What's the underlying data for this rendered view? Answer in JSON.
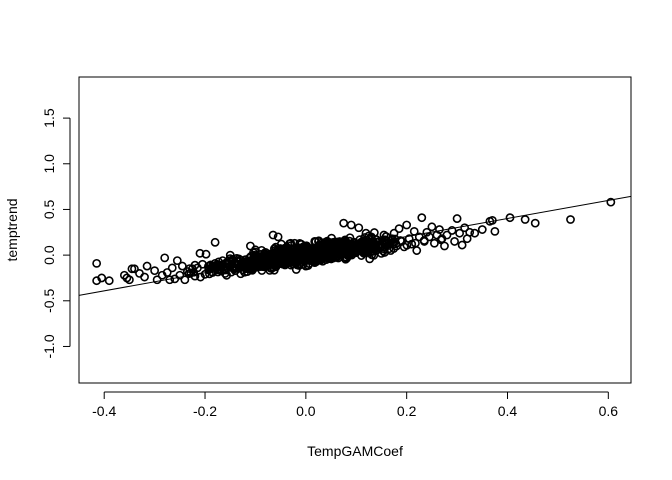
{
  "chart_data": {
    "type": "scatter",
    "title": "",
    "xlabel": "TempGAMCoef",
    "ylabel": "temptrend",
    "xlim": [
      -0.45,
      0.645
    ],
    "ylim": [
      -1.4,
      1.95
    ],
    "x_ticks": [
      -0.4,
      -0.2,
      0.0,
      0.2,
      0.4,
      0.6
    ],
    "x_tick_labels": [
      "-0.4",
      "-0.2",
      "0.0",
      "0.2",
      "0.4",
      "0.6"
    ],
    "y_ticks": [
      -1.0,
      -0.5,
      0.0,
      0.5,
      1.0,
      1.5
    ],
    "y_tick_labels": [
      "-1.0",
      "-0.5",
      "0.0",
      "0.5",
      "1.0",
      "1.5"
    ],
    "grid": false,
    "legend": "none",
    "fit_line": {
      "intercept": 0.005,
      "slope": 0.99
    },
    "marker": "open-circle",
    "color": "#000000",
    "points": [
      [
        -0.415,
        -0.09
      ],
      [
        -0.415,
        -0.28
      ],
      [
        -0.405,
        -0.25
      ],
      [
        -0.39,
        -0.28
      ],
      [
        -0.36,
        -0.22
      ],
      [
        -0.355,
        -0.25
      ],
      [
        -0.35,
        -0.27
      ],
      [
        -0.345,
        -0.15
      ],
      [
        -0.34,
        -0.15
      ],
      [
        -0.33,
        -0.2
      ],
      [
        -0.32,
        -0.24
      ],
      [
        -0.315,
        -0.12
      ],
      [
        -0.3,
        -0.17
      ],
      [
        -0.295,
        -0.27
      ],
      [
        -0.285,
        -0.22
      ],
      [
        -0.28,
        -0.03
      ],
      [
        -0.275,
        -0.19
      ],
      [
        -0.27,
        -0.27
      ],
      [
        -0.265,
        -0.14
      ],
      [
        -0.26,
        -0.26
      ],
      [
        -0.255,
        -0.06
      ],
      [
        -0.25,
        -0.22
      ],
      [
        -0.245,
        -0.12
      ],
      [
        -0.24,
        -0.27
      ],
      [
        -0.235,
        -0.18
      ],
      [
        -0.225,
        -0.15
      ],
      [
        -0.22,
        -0.23
      ],
      [
        -0.215,
        -0.14
      ],
      [
        -0.21,
        0.02
      ],
      [
        -0.205,
        -0.1
      ],
      [
        -0.2,
        -0.21
      ],
      [
        -0.198,
        0.01
      ],
      [
        -0.192,
        -0.15
      ],
      [
        -0.185,
        -0.19
      ],
      [
        -0.18,
        -0.09
      ],
      [
        -0.18,
        0.14
      ],
      [
        -0.175,
        -0.16
      ],
      [
        -0.17,
        -0.12
      ],
      [
        -0.165,
        -0.06
      ],
      [
        -0.16,
        -0.2
      ],
      [
        -0.155,
        -0.1
      ],
      [
        -0.15,
        0.0
      ],
      [
        -0.145,
        -0.13
      ],
      [
        -0.14,
        -0.17
      ],
      [
        -0.135,
        -0.07
      ],
      [
        -0.13,
        -0.12
      ],
      [
        -0.125,
        -0.16
      ],
      [
        -0.12,
        -0.05
      ],
      [
        -0.115,
        -0.1
      ],
      [
        -0.11,
        0.1
      ],
      [
        -0.105,
        -0.14
      ],
      [
        -0.1,
        -0.08
      ],
      [
        -0.095,
        -0.03
      ],
      [
        -0.09,
        -0.12
      ],
      [
        -0.085,
        -0.07
      ],
      [
        -0.08,
        0.03
      ],
      [
        -0.075,
        -0.11
      ],
      [
        -0.07,
        -0.04
      ],
      [
        -0.065,
        0.22
      ],
      [
        -0.06,
        -0.08
      ],
      [
        -0.055,
        0.2
      ],
      [
        -0.05,
        -0.02
      ],
      [
        -0.045,
        -0.1
      ],
      [
        -0.04,
        0.03
      ],
      [
        -0.035,
        -0.06
      ],
      [
        -0.03,
        0.13
      ],
      [
        -0.025,
        -0.03
      ],
      [
        -0.02,
        -0.09
      ],
      [
        -0.015,
        0.02
      ],
      [
        -0.01,
        -0.05
      ],
      [
        -0.005,
        0.05
      ],
      [
        0.0,
        -0.12
      ],
      [
        0.005,
        0.0
      ],
      [
        0.01,
        -0.04
      ],
      [
        0.015,
        0.07
      ],
      [
        0.02,
        -0.02
      ],
      [
        0.025,
        0.15
      ],
      [
        0.03,
        0.03
      ],
      [
        0.035,
        -0.03
      ],
      [
        0.04,
        0.06
      ],
      [
        0.045,
        0.01
      ],
      [
        0.05,
        0.1
      ],
      [
        0.055,
        -0.01
      ],
      [
        0.06,
        0.05
      ],
      [
        0.065,
        0.12
      ],
      [
        0.07,
        0.02
      ],
      [
        0.075,
        0.35
      ],
      [
        0.08,
        0.07
      ],
      [
        0.085,
        0.03
      ],
      [
        0.09,
        0.33
      ],
      [
        0.095,
        0.1
      ],
      [
        0.1,
        0.05
      ],
      [
        0.105,
        0.3
      ],
      [
        0.11,
        0.09
      ],
      [
        0.115,
        0.02
      ],
      [
        0.12,
        0.13
      ],
      [
        0.125,
        0.07
      ],
      [
        0.13,
        0.2
      ],
      [
        0.135,
        0.11
      ],
      [
        0.14,
        0.05
      ],
      [
        0.145,
        0.15
      ],
      [
        0.15,
        0.09
      ],
      [
        0.155,
        0.22
      ],
      [
        0.16,
        0.13
      ],
      [
        0.165,
        0.07
      ],
      [
        0.17,
        0.17
      ],
      [
        0.175,
        0.24
      ],
      [
        0.18,
        0.1
      ],
      [
        0.185,
        0.29
      ],
      [
        0.19,
        0.15
      ],
      [
        0.195,
        0.09
      ],
      [
        0.2,
        0.33
      ],
      [
        0.205,
        0.18
      ],
      [
        0.21,
        0.12
      ],
      [
        0.215,
        0.26
      ],
      [
        0.22,
        0.05
      ],
      [
        0.225,
        0.2
      ],
      [
        0.23,
        0.41
      ],
      [
        0.235,
        0.15
      ],
      [
        0.24,
        0.25
      ],
      [
        0.245,
        0.2
      ],
      [
        0.25,
        0.31
      ],
      [
        0.255,
        0.13
      ],
      [
        0.26,
        0.22
      ],
      [
        0.265,
        0.28
      ],
      [
        0.27,
        0.18
      ],
      [
        0.275,
        0.1
      ],
      [
        0.28,
        0.22
      ],
      [
        0.29,
        0.27
      ],
      [
        0.295,
        0.15
      ],
      [
        0.3,
        0.4
      ],
      [
        0.305,
        0.24
      ],
      [
        0.31,
        0.11
      ],
      [
        0.315,
        0.3
      ],
      [
        0.32,
        0.18
      ],
      [
        0.325,
        0.25
      ],
      [
        0.335,
        0.24
      ],
      [
        0.35,
        0.28
      ],
      [
        0.365,
        0.37
      ],
      [
        0.37,
        0.38
      ],
      [
        0.375,
        0.26
      ],
      [
        0.405,
        0.41
      ],
      [
        0.435,
        0.39
      ],
      [
        0.455,
        0.35
      ],
      [
        0.525,
        0.39
      ],
      [
        0.605,
        0.58
      ]
    ]
  }
}
